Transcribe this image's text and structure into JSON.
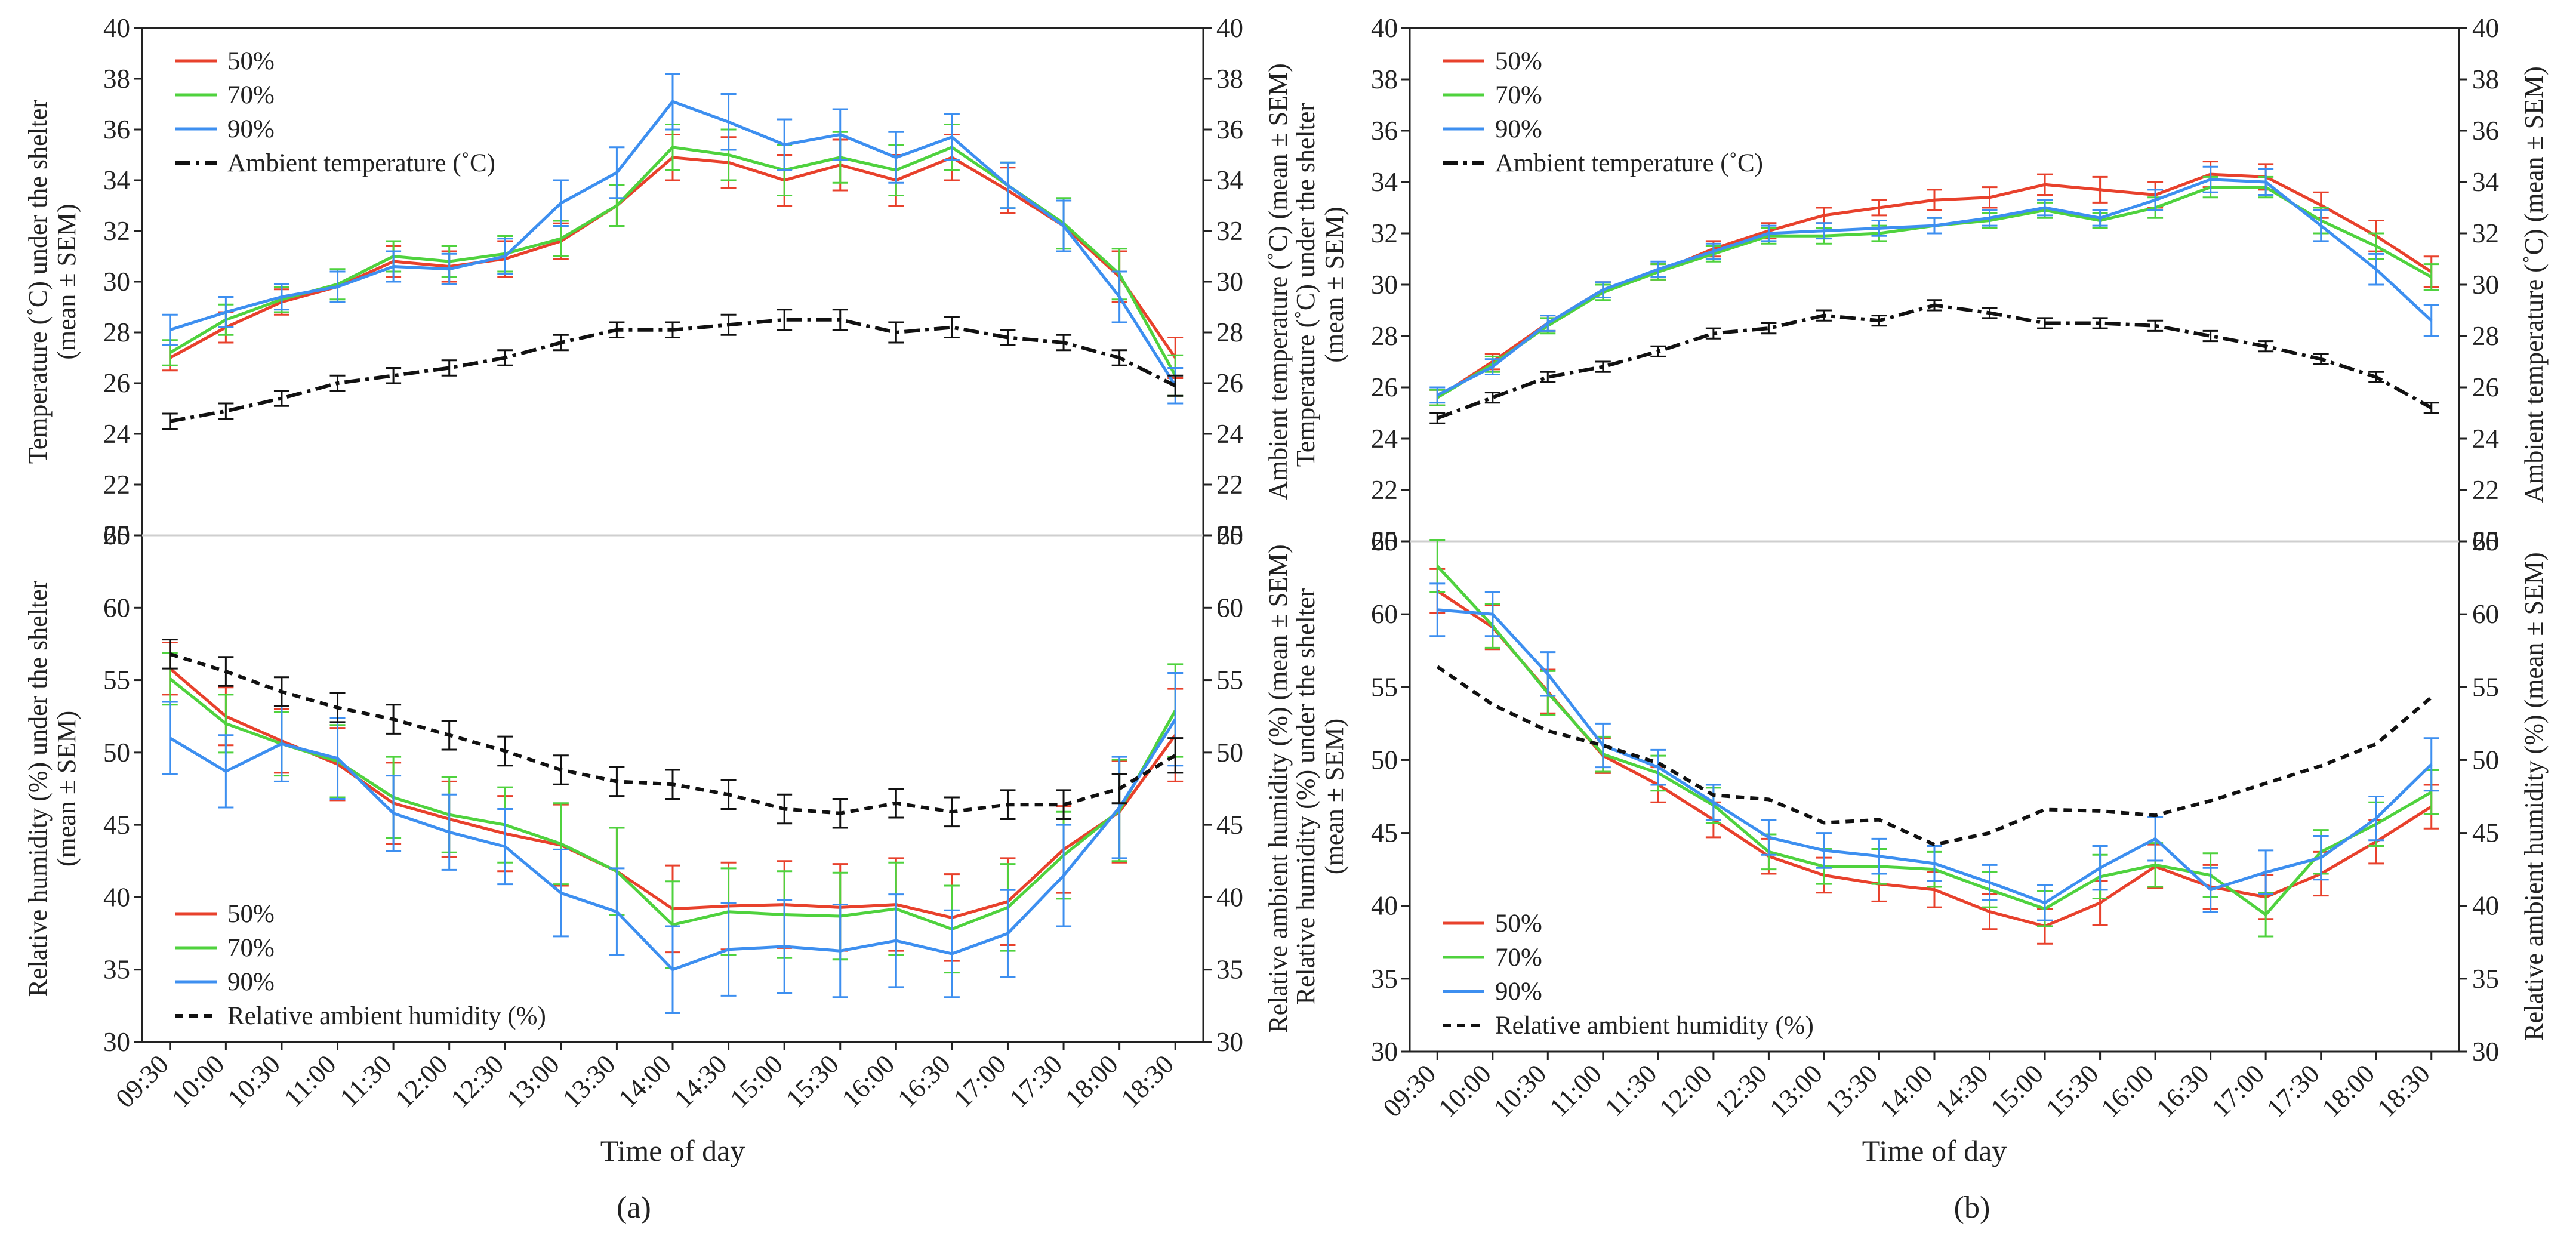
{
  "colors": {
    "s50": "#e8412c",
    "s70": "#4fd23e",
    "s90": "#3d8ff0",
    "ambient": "#111111"
  },
  "chart_data": [
    {
      "panel": "a",
      "caption": "(a)",
      "xlabel": "Time of day",
      "categories": [
        "09:30",
        "10:00",
        "10:30",
        "11:00",
        "11:30",
        "12:00",
        "12:30",
        "13:00",
        "13:30",
        "14:00",
        "14:30",
        "15:00",
        "15:30",
        "16:00",
        "16:30",
        "17:00",
        "17:30",
        "18:00",
        "18:30"
      ],
      "top": {
        "type": "line",
        "ylabel_left": [
          "Temperature (˚C) under the shelter",
          "(mean ± SEM)"
        ],
        "ylabel_right": "Ambient temperature (˚C) (mean ± SEM)",
        "ylim": [
          20,
          40
        ],
        "yticks": [
          20,
          22,
          24,
          26,
          28,
          30,
          32,
          34,
          36,
          38,
          40
        ],
        "legend": [
          "50%",
          "70%",
          "90%",
          "Ambient temperature (˚C)"
        ],
        "series": [
          {
            "name": "50%",
            "values": [
              27.0,
              28.2,
              29.2,
              29.8,
              30.8,
              30.6,
              30.9,
              31.6,
              33.0,
              34.9,
              34.7,
              34.0,
              34.6,
              34.0,
              34.9,
              33.6,
              32.2,
              30.2,
              27.0
            ],
            "err": [
              0.5,
              0.6,
              0.5,
              0.6,
              0.6,
              0.6,
              0.7,
              0.7,
              0.8,
              0.9,
              1.0,
              1.0,
              1.0,
              1.0,
              0.9,
              0.9,
              1.0,
              1.0,
              0.8
            ]
          },
          {
            "name": "70%",
            "values": [
              27.2,
              28.5,
              29.3,
              29.9,
              31.0,
              30.8,
              31.1,
              31.7,
              33.0,
              35.3,
              35.0,
              34.4,
              34.9,
              34.4,
              35.3,
              33.8,
              32.3,
              30.3,
              26.3
            ],
            "err": [
              0.5,
              0.6,
              0.5,
              0.6,
              0.6,
              0.6,
              0.7,
              0.7,
              0.8,
              0.9,
              1.0,
              1.0,
              1.0,
              1.0,
              0.9,
              0.9,
              1.0,
              1.0,
              0.8
            ]
          },
          {
            "name": "90%",
            "values": [
              28.1,
              28.8,
              29.4,
              29.8,
              30.6,
              30.5,
              31.0,
              33.1,
              34.3,
              37.1,
              36.3,
              35.4,
              35.8,
              34.9,
              35.7,
              33.8,
              32.2,
              29.4,
              25.9
            ],
            "err": [
              0.6,
              0.6,
              0.5,
              0.6,
              0.6,
              0.6,
              0.7,
              0.9,
              1.0,
              1.1,
              1.1,
              1.0,
              1.0,
              1.0,
              0.9,
              0.9,
              1.0,
              1.0,
              0.7
            ]
          },
          {
            "name": "Ambient temperature (˚C)",
            "values": [
              24.5,
              24.9,
              25.4,
              26.0,
              26.3,
              26.6,
              27.0,
              27.6,
              28.1,
              28.1,
              28.3,
              28.5,
              28.5,
              28.0,
              28.2,
              27.8,
              27.6,
              27.0,
              25.9
            ],
            "err": [
              0.3,
              0.3,
              0.3,
              0.3,
              0.3,
              0.3,
              0.3,
              0.3,
              0.3,
              0.3,
              0.4,
              0.4,
              0.4,
              0.4,
              0.4,
              0.3,
              0.3,
              0.3,
              0.4
            ]
          }
        ]
      },
      "bottom": {
        "type": "line",
        "ylabel_left": [
          "Relative humidity (%) under the shelter",
          "(mean ± SEM)"
        ],
        "ylabel_right": "Relative ambient humidity (%) (mean ± SEM)",
        "ylim": [
          30,
          65
        ],
        "yticks": [
          30,
          35,
          40,
          45,
          50,
          55,
          60,
          65
        ],
        "legend": [
          "50%",
          "70%",
          "90%",
          "Relative ambient humidity (%)"
        ],
        "series": [
          {
            "name": "50%",
            "values": [
              55.8,
              52.5,
              50.8,
              49.2,
              46.5,
              45.4,
              44.4,
              43.6,
              41.8,
              39.2,
              39.4,
              39.5,
              39.3,
              39.5,
              38.6,
              39.7,
              43.3,
              45.9,
              51.2
            ],
            "err": [
              1.8,
              2.0,
              2.2,
              2.5,
              2.8,
              2.6,
              2.6,
              2.8,
              3.0,
              3.0,
              3.0,
              3.0,
              3.0,
              3.2,
              3.0,
              3.0,
              3.0,
              3.5,
              3.2
            ]
          },
          {
            "name": "70%",
            "values": [
              55.1,
              52.0,
              50.6,
              49.4,
              46.9,
              45.7,
              45.0,
              43.7,
              41.8,
              38.1,
              39.0,
              38.8,
              38.7,
              39.2,
              37.8,
              39.3,
              42.9,
              46.0,
              52.9
            ],
            "err": [
              1.8,
              2.0,
              2.2,
              2.5,
              2.8,
              2.6,
              2.6,
              2.8,
              3.0,
              3.0,
              3.0,
              3.0,
              3.0,
              3.2,
              3.0,
              3.0,
              3.0,
              3.5,
              3.2
            ]
          },
          {
            "name": "90%",
            "values": [
              51.0,
              48.7,
              50.6,
              49.6,
              45.8,
              44.5,
              43.5,
              40.3,
              39.0,
              35.0,
              36.4,
              36.6,
              36.3,
              37.0,
              36.1,
              37.5,
              41.5,
              46.2,
              52.3
            ],
            "err": [
              2.5,
              2.5,
              2.6,
              2.8,
              2.6,
              2.6,
              2.6,
              3.0,
              3.0,
              3.0,
              3.2,
              3.2,
              3.2,
              3.2,
              3.0,
              3.0,
              3.5,
              3.5,
              3.2
            ]
          },
          {
            "name": "Relative ambient humidity (%)",
            "values": [
              56.8,
              55.6,
              54.2,
              53.1,
              52.3,
              51.2,
              50.1,
              48.8,
              48.0,
              47.8,
              47.1,
              46.1,
              45.8,
              46.5,
              45.9,
              46.4,
              46.4,
              47.5,
              49.8
            ],
            "err": [
              1.0,
              1.0,
              1.0,
              1.0,
              1.0,
              1.0,
              1.0,
              1.0,
              1.0,
              1.0,
              1.0,
              1.0,
              1.0,
              1.0,
              1.0,
              1.0,
              1.0,
              1.0,
              1.2
            ]
          }
        ]
      }
    },
    {
      "panel": "b",
      "caption": "(b)",
      "xlabel": "Time of day",
      "categories": [
        "09:30",
        "10:00",
        "10:30",
        "11:00",
        "11:30",
        "12:00",
        "12:30",
        "13:00",
        "13:30",
        "14:00",
        "14:30",
        "15:00",
        "15:30",
        "16:00",
        "16:30",
        "17:00",
        "17:30",
        "18:00",
        "18:30"
      ],
      "top": {
        "type": "line",
        "ylabel_left": [
          "Temperature (˚C) under the shelter",
          "(mean ± SEM)"
        ],
        "ylabel_right": "Ambient temperature (˚C) (mean ± SEM)",
        "ylim": [
          20,
          40
        ],
        "yticks": [
          20,
          22,
          24,
          26,
          28,
          30,
          32,
          34,
          36,
          38,
          40
        ],
        "legend": [
          "50%",
          "70%",
          "90%",
          "Ambient temperature (˚C)"
        ],
        "series": [
          {
            "name": "50%",
            "values": [
              25.6,
              27.0,
              28.5,
              29.8,
              30.5,
              31.4,
              32.1,
              32.7,
              33.0,
              33.3,
              33.4,
              33.9,
              33.7,
              33.5,
              34.3,
              34.2,
              33.1,
              31.9,
              30.5
            ],
            "err": [
              0.3,
              0.3,
              0.3,
              0.3,
              0.3,
              0.3,
              0.3,
              0.3,
              0.3,
              0.4,
              0.4,
              0.4,
              0.5,
              0.5,
              0.5,
              0.5,
              0.5,
              0.6,
              0.6
            ]
          },
          {
            "name": "70%",
            "values": [
              25.6,
              26.9,
              28.4,
              29.7,
              30.5,
              31.2,
              31.9,
              31.9,
              32.0,
              32.3,
              32.5,
              32.9,
              32.5,
              33.0,
              33.8,
              33.8,
              32.5,
              31.5,
              30.3
            ],
            "err": [
              0.3,
              0.3,
              0.3,
              0.3,
              0.3,
              0.3,
              0.3,
              0.3,
              0.3,
              0.3,
              0.3,
              0.3,
              0.3,
              0.4,
              0.4,
              0.4,
              0.5,
              0.5,
              0.5
            ]
          },
          {
            "name": "90%",
            "values": [
              25.7,
              26.8,
              28.5,
              29.8,
              30.6,
              31.3,
              32.0,
              32.1,
              32.2,
              32.3,
              32.6,
              33.0,
              32.6,
              33.3,
              34.1,
              34.0,
              32.3,
              30.6,
              28.6
            ],
            "err": [
              0.3,
              0.3,
              0.3,
              0.3,
              0.3,
              0.3,
              0.3,
              0.3,
              0.3,
              0.3,
              0.3,
              0.3,
              0.3,
              0.4,
              0.5,
              0.5,
              0.6,
              0.6,
              0.6
            ]
          },
          {
            "name": "Ambient temperature (˚C)",
            "values": [
              24.8,
              25.6,
              26.4,
              26.8,
              27.4,
              28.1,
              28.3,
              28.8,
              28.6,
              29.2,
              28.9,
              28.5,
              28.5,
              28.4,
              28.0,
              27.6,
              27.1,
              26.4,
              25.2
            ],
            "err": [
              0.2,
              0.2,
              0.2,
              0.2,
              0.2,
              0.2,
              0.2,
              0.2,
              0.2,
              0.2,
              0.2,
              0.2,
              0.2,
              0.2,
              0.2,
              0.2,
              0.2,
              0.2,
              0.2
            ]
          }
        ]
      },
      "bottom": {
        "type": "line",
        "ylabel_left": [
          "Relative humidity (%) under the shelter",
          "(mean ± SEM)"
        ],
        "ylabel_right": "Relative ambient humidity (%)  (mean ± SEM)",
        "ylim": [
          30,
          65
        ],
        "yticks": [
          30,
          35,
          40,
          45,
          50,
          55,
          60,
          65
        ],
        "legend": [
          "50%",
          "70%",
          "90%",
          "Relative ambient humidity (%)"
        ],
        "series": [
          {
            "name": "50%",
            "values": [
              61.6,
              59.1,
              54.7,
              50.3,
              48.3,
              45.9,
              43.4,
              42.1,
              41.5,
              41.1,
              39.6,
              38.6,
              40.2,
              42.7,
              41.3,
              40.6,
              42.2,
              44.4,
              46.8
            ],
            "err": [
              1.5,
              1.5,
              1.5,
              1.2,
              1.2,
              1.2,
              1.2,
              1.2,
              1.2,
              1.2,
              1.2,
              1.2,
              1.5,
              1.5,
              1.5,
              1.5,
              1.5,
              1.5,
              1.5
            ]
          },
          {
            "name": "70%",
            "values": [
              63.3,
              59.2,
              54.6,
              50.4,
              49.1,
              46.9,
              43.7,
              42.7,
              42.7,
              42.5,
              41.1,
              39.8,
              42.0,
              42.8,
              42.1,
              39.4,
              43.7,
              45.6,
              47.8
            ],
            "err": [
              1.8,
              1.5,
              1.5,
              1.2,
              1.2,
              1.2,
              1.2,
              1.2,
              1.2,
              1.2,
              1.2,
              1.2,
              1.5,
              1.5,
              1.5,
              1.5,
              1.5,
              1.5,
              1.5
            ]
          },
          {
            "name": "90%",
            "values": [
              60.3,
              60.0,
              55.9,
              51.0,
              49.5,
              47.1,
              44.7,
              43.8,
              43.4,
              42.9,
              41.6,
              40.2,
              42.6,
              44.6,
              41.1,
              42.3,
              43.3,
              46.0,
              49.7
            ],
            "err": [
              1.8,
              1.5,
              1.5,
              1.5,
              1.2,
              1.2,
              1.2,
              1.2,
              1.2,
              1.2,
              1.2,
              1.2,
              1.5,
              1.5,
              1.5,
              1.5,
              1.5,
              1.5,
              1.8
            ]
          },
          {
            "name": "Relative ambient humidity (%)",
            "values": [
              56.4,
              53.8,
              52.0,
              51.0,
              49.8,
              47.6,
              47.3,
              45.7,
              45.9,
              44.2,
              45.0,
              46.6,
              46.5,
              46.2,
              47.2,
              48.4,
              49.6,
              51.1,
              54.3
            ],
            "err": [
              0,
              0,
              0,
              0,
              0,
              0,
              0,
              0,
              0,
              0,
              0,
              0,
              0,
              0,
              0,
              0,
              0,
              0,
              0
            ]
          }
        ]
      }
    }
  ]
}
